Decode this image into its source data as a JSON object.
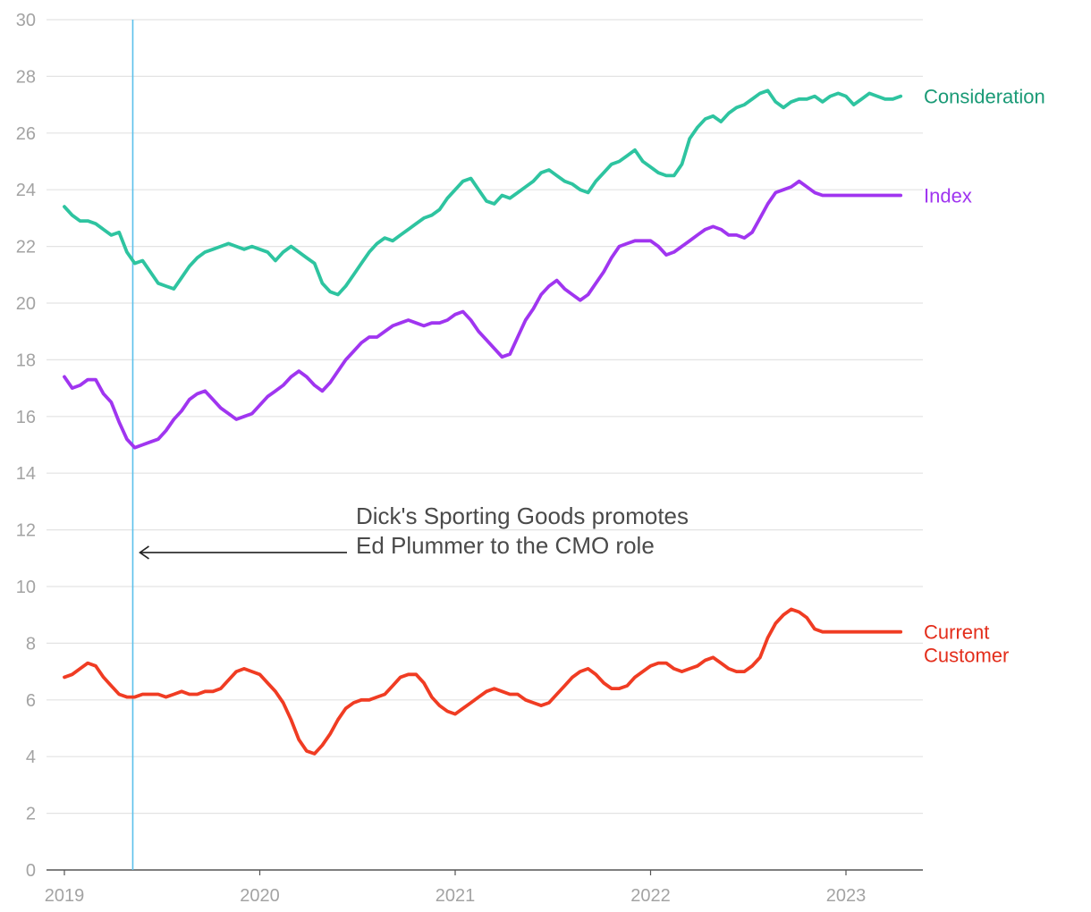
{
  "chart_data": {
    "type": "line",
    "title": "",
    "xlabel": "",
    "ylabel": "",
    "ylim": [
      0,
      30
    ],
    "xlim": [
      2019.0,
      2023.28
    ],
    "y_ticks": [
      0,
      2,
      4,
      6,
      8,
      10,
      12,
      14,
      16,
      18,
      20,
      22,
      24,
      26,
      28,
      30
    ],
    "y_tick_labels": [
      "0",
      "2",
      "4",
      "6",
      "8",
      "10",
      "12",
      "14",
      "16",
      "18",
      "20",
      "22",
      "24",
      "26",
      "28",
      "30"
    ],
    "x_ticks": [
      2019,
      2020,
      2021,
      2022,
      2023
    ],
    "x_tick_labels": [
      "2019",
      "2020",
      "2021",
      "2022",
      "2023"
    ],
    "grid": "horizontal",
    "series": [
      {
        "name": "Consideration",
        "label_lines": [
          "Consideration"
        ],
        "color": "#2ec4a0",
        "label_color": "#1a9a76",
        "x": [
          2019.0,
          2019.04,
          2019.08,
          2019.12,
          2019.16,
          2019.2,
          2019.24,
          2019.28,
          2019.32,
          2019.36,
          2019.4,
          2019.44,
          2019.48,
          2019.52,
          2019.56,
          2019.6,
          2019.64,
          2019.68,
          2019.72,
          2019.76,
          2019.8,
          2019.84,
          2019.88,
          2019.92,
          2019.96,
          2020.0,
          2020.04,
          2020.08,
          2020.12,
          2020.16,
          2020.2,
          2020.24,
          2020.28,
          2020.32,
          2020.36,
          2020.4,
          2020.44,
          2020.48,
          2020.52,
          2020.56,
          2020.6,
          2020.64,
          2020.68,
          2020.72,
          2020.76,
          2020.8,
          2020.84,
          2020.88,
          2020.92,
          2020.96,
          2021.0,
          2021.04,
          2021.08,
          2021.12,
          2021.16,
          2021.2,
          2021.24,
          2021.28,
          2021.32,
          2021.36,
          2021.4,
          2021.44,
          2021.48,
          2021.52,
          2021.56,
          2021.6,
          2021.64,
          2021.68,
          2021.72,
          2021.76,
          2021.8,
          2021.84,
          2021.88,
          2021.92,
          2021.96,
          2022.0,
          2022.04,
          2022.08,
          2022.12,
          2022.16,
          2022.2,
          2022.24,
          2022.28,
          2022.32,
          2022.36,
          2022.4,
          2022.44,
          2022.48,
          2022.52,
          2022.56,
          2022.6,
          2022.64,
          2022.68,
          2022.72,
          2022.76,
          2022.8,
          2022.84,
          2022.88,
          2022.92,
          2022.96,
          2023.0,
          2023.04,
          2023.08,
          2023.12,
          2023.16,
          2023.2,
          2023.24,
          2023.28
        ],
        "values": [
          23.4,
          23.1,
          22.9,
          22.9,
          22.8,
          22.6,
          22.4,
          22.5,
          21.8,
          21.4,
          21.5,
          21.1,
          20.7,
          20.6,
          20.5,
          20.9,
          21.3,
          21.6,
          21.8,
          21.9,
          22.0,
          22.1,
          22.0,
          21.9,
          22.0,
          21.9,
          21.8,
          21.5,
          21.8,
          22.0,
          21.8,
          21.6,
          21.4,
          20.7,
          20.4,
          20.3,
          20.6,
          21.0,
          21.4,
          21.8,
          22.1,
          22.3,
          22.2,
          22.4,
          22.6,
          22.8,
          23.0,
          23.1,
          23.3,
          23.7,
          24.0,
          24.3,
          24.4,
          24.0,
          23.6,
          23.5,
          23.8,
          23.7,
          23.9,
          24.1,
          24.3,
          24.6,
          24.7,
          24.5,
          24.3,
          24.2,
          24.0,
          23.9,
          24.3,
          24.6,
          24.9,
          25.0,
          25.2,
          25.4,
          25.0,
          24.8,
          24.6,
          24.5,
          24.5,
          24.9,
          25.8,
          26.2,
          26.5,
          26.6,
          26.4,
          26.7,
          26.9,
          27.0,
          27.2,
          27.4,
          27.5,
          27.1,
          26.9,
          27.1,
          27.2,
          27.2,
          27.3,
          27.1,
          27.3,
          27.4,
          27.3,
          27.0,
          27.2,
          27.4,
          27.3,
          27.2,
          27.2,
          27.3
        ]
      },
      {
        "name": "Index",
        "label_lines": [
          "Index"
        ],
        "color": "#a035f0",
        "label_color": "#a035f0",
        "x": [
          2019.0,
          2019.04,
          2019.08,
          2019.12,
          2019.16,
          2019.2,
          2019.24,
          2019.28,
          2019.32,
          2019.36,
          2019.4,
          2019.44,
          2019.48,
          2019.52,
          2019.56,
          2019.6,
          2019.64,
          2019.68,
          2019.72,
          2019.76,
          2019.8,
          2019.84,
          2019.88,
          2019.92,
          2019.96,
          2020.0,
          2020.04,
          2020.08,
          2020.12,
          2020.16,
          2020.2,
          2020.24,
          2020.28,
          2020.32,
          2020.36,
          2020.4,
          2020.44,
          2020.48,
          2020.52,
          2020.56,
          2020.6,
          2020.64,
          2020.68,
          2020.72,
          2020.76,
          2020.8,
          2020.84,
          2020.88,
          2020.92,
          2020.96,
          2021.0,
          2021.04,
          2021.08,
          2021.12,
          2021.16,
          2021.2,
          2021.24,
          2021.28,
          2021.32,
          2021.36,
          2021.4,
          2021.44,
          2021.48,
          2021.52,
          2021.56,
          2021.6,
          2021.64,
          2021.68,
          2021.72,
          2021.76,
          2021.8,
          2021.84,
          2021.88,
          2021.92,
          2021.96,
          2022.0,
          2022.04,
          2022.08,
          2022.12,
          2022.16,
          2022.2,
          2022.24,
          2022.28,
          2022.32,
          2022.36,
          2022.4,
          2022.44,
          2022.48,
          2022.52,
          2022.56,
          2022.6,
          2022.64,
          2022.68,
          2022.72,
          2022.76,
          2022.8,
          2022.84,
          2022.88,
          2022.92,
          2022.96,
          2023.0,
          2023.04,
          2023.08,
          2023.12,
          2023.16,
          2023.2,
          2023.24,
          2023.28
        ],
        "values": [
          17.4,
          17.0,
          17.1,
          17.3,
          17.3,
          16.8,
          16.5,
          15.8,
          15.2,
          14.9,
          15.0,
          15.1,
          15.2,
          15.5,
          15.9,
          16.2,
          16.6,
          16.8,
          16.9,
          16.6,
          16.3,
          16.1,
          15.9,
          16.0,
          16.1,
          16.4,
          16.7,
          16.9,
          17.1,
          17.4,
          17.6,
          17.4,
          17.1,
          16.9,
          17.2,
          17.6,
          18.0,
          18.3,
          18.6,
          18.8,
          18.8,
          19.0,
          19.2,
          19.3,
          19.4,
          19.3,
          19.2,
          19.3,
          19.3,
          19.4,
          19.6,
          19.7,
          19.4,
          19.0,
          18.7,
          18.4,
          18.1,
          18.2,
          18.8,
          19.4,
          19.8,
          20.3,
          20.6,
          20.8,
          20.5,
          20.3,
          20.1,
          20.3,
          20.7,
          21.1,
          21.6,
          22.0,
          22.1,
          22.2,
          22.2,
          22.2,
          22.0,
          21.7,
          21.8,
          22.0,
          22.2,
          22.4,
          22.6,
          22.7,
          22.6,
          22.4,
          22.4,
          22.3,
          22.5,
          23.0,
          23.5,
          23.9,
          24.0,
          24.1,
          24.3,
          24.1,
          23.9,
          23.8,
          23.8,
          23.8,
          23.8,
          23.8,
          23.8,
          23.8,
          23.8,
          23.8,
          23.8,
          23.8
        ]
      },
      {
        "name": "Current Customer",
        "label_lines": [
          "Current",
          "Customer"
        ],
        "color": "#f03c23",
        "label_color": "#e32d1b",
        "x": [
          2019.0,
          2019.04,
          2019.08,
          2019.12,
          2019.16,
          2019.2,
          2019.24,
          2019.28,
          2019.32,
          2019.36,
          2019.4,
          2019.44,
          2019.48,
          2019.52,
          2019.56,
          2019.6,
          2019.64,
          2019.68,
          2019.72,
          2019.76,
          2019.8,
          2019.84,
          2019.88,
          2019.92,
          2019.96,
          2020.0,
          2020.04,
          2020.08,
          2020.12,
          2020.16,
          2020.2,
          2020.24,
          2020.28,
          2020.32,
          2020.36,
          2020.4,
          2020.44,
          2020.48,
          2020.52,
          2020.56,
          2020.6,
          2020.64,
          2020.68,
          2020.72,
          2020.76,
          2020.8,
          2020.84,
          2020.88,
          2020.92,
          2020.96,
          2021.0,
          2021.04,
          2021.08,
          2021.12,
          2021.16,
          2021.2,
          2021.24,
          2021.28,
          2021.32,
          2021.36,
          2021.4,
          2021.44,
          2021.48,
          2021.52,
          2021.56,
          2021.6,
          2021.64,
          2021.68,
          2021.72,
          2021.76,
          2021.8,
          2021.84,
          2021.88,
          2021.92,
          2021.96,
          2022.0,
          2022.04,
          2022.08,
          2022.12,
          2022.16,
          2022.2,
          2022.24,
          2022.28,
          2022.32,
          2022.36,
          2022.4,
          2022.44,
          2022.48,
          2022.52,
          2022.56,
          2022.6,
          2022.64,
          2022.68,
          2022.72,
          2022.76,
          2022.8,
          2022.84,
          2022.88,
          2022.92,
          2022.96,
          2023.0,
          2023.04,
          2023.08,
          2023.12,
          2023.16,
          2023.2,
          2023.24,
          2023.28
        ],
        "values": [
          6.8,
          6.9,
          7.1,
          7.3,
          7.2,
          6.8,
          6.5,
          6.2,
          6.1,
          6.1,
          6.2,
          6.2,
          6.2,
          6.1,
          6.2,
          6.3,
          6.2,
          6.2,
          6.3,
          6.3,
          6.4,
          6.7,
          7.0,
          7.1,
          7.0,
          6.9,
          6.6,
          6.3,
          5.9,
          5.3,
          4.6,
          4.2,
          4.1,
          4.4,
          4.8,
          5.3,
          5.7,
          5.9,
          6.0,
          6.0,
          6.1,
          6.2,
          6.5,
          6.8,
          6.9,
          6.9,
          6.6,
          6.1,
          5.8,
          5.6,
          5.5,
          5.7,
          5.9,
          6.1,
          6.3,
          6.4,
          6.3,
          6.2,
          6.2,
          6.0,
          5.9,
          5.8,
          5.9,
          6.2,
          6.5,
          6.8,
          7.0,
          7.1,
          6.9,
          6.6,
          6.4,
          6.4,
          6.5,
          6.8,
          7.0,
          7.2,
          7.3,
          7.3,
          7.1,
          7.0,
          7.1,
          7.2,
          7.4,
          7.5,
          7.3,
          7.1,
          7.0,
          7.0,
          7.2,
          7.5,
          8.2,
          8.7,
          9.0,
          9.2,
          9.1,
          8.9,
          8.5,
          8.4,
          8.4,
          8.4,
          8.4,
          8.4,
          8.4,
          8.4,
          8.4,
          8.4,
          8.4,
          8.4
        ]
      }
    ],
    "vertical_marker": {
      "x": 2019.35,
      "color": "#5bc0eb"
    },
    "annotation": {
      "lines": [
        "Dick's Sporting Goods promotes",
        "Ed Plummer to the CMO role"
      ],
      "arrow_target_x": 2019.35,
      "arrow_target_y": 11.2
    }
  }
}
